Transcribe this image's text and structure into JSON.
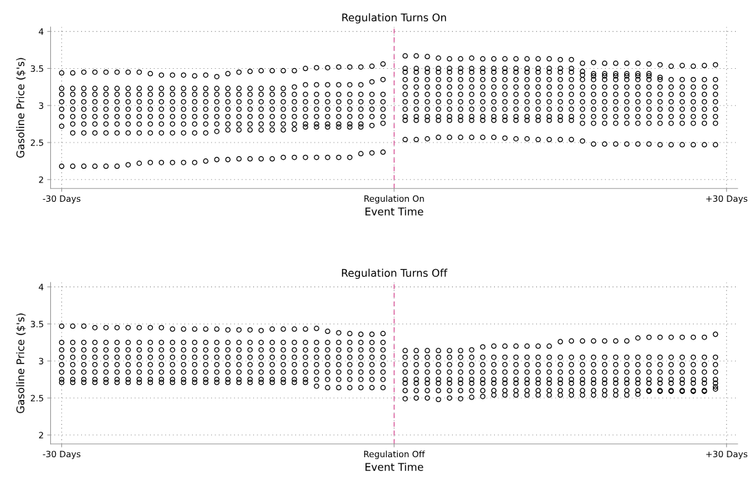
{
  "chart_data": [
    {
      "type": "scatter",
      "title": "Regulation Turns On",
      "xlabel": "Event Time",
      "ylabel": "Gasoline Price ($'s)",
      "marker": "circle",
      "grid": true,
      "xlim": [
        -31,
        31
      ],
      "ylim": [
        1.88,
        4.06
      ],
      "xticks": [
        {
          "value": -30,
          "label": "-30 Days"
        },
        {
          "value": 0,
          "label": "Regulation On"
        },
        {
          "value": 30,
          "label": "+30 Days"
        }
      ],
      "yticks": [
        2,
        2.5,
        3,
        3.5,
        4
      ],
      "ref_lines": [
        {
          "axis": "x",
          "value": 0,
          "color": "#d9589a",
          "line_style": "dashed"
        }
      ],
      "x": [
        -30,
        -29,
        -28,
        -27,
        -26,
        -25,
        -24,
        -23,
        -22,
        -21,
        -20,
        -19,
        -18,
        -17,
        -16,
        -15,
        -14,
        -13,
        -12,
        -11,
        -10,
        -9,
        -8,
        -7,
        -6,
        -5,
        -4,
        -3,
        -2,
        -1,
        1,
        2,
        3,
        4,
        5,
        6,
        7,
        8,
        9,
        10,
        11,
        12,
        13,
        14,
        15,
        16,
        17,
        18,
        19,
        20,
        21,
        22,
        23,
        24,
        25,
        26,
        27,
        28,
        29
      ],
      "series": [
        {
          "color": "#000000",
          "values": [
            3.44,
            3.44,
            3.45,
            3.45,
            3.45,
            3.45,
            3.45,
            3.45,
            3.43,
            3.41,
            3.41,
            3.41,
            3.4,
            3.41,
            3.39,
            3.43,
            3.45,
            3.46,
            3.47,
            3.47,
            3.47,
            3.47,
            3.5,
            3.51,
            3.51,
            3.52,
            3.52,
            3.52,
            3.53,
            3.56,
            3.67,
            3.67,
            3.66,
            3.64,
            3.63,
            3.63,
            3.64,
            3.63,
            3.63,
            3.63,
            3.63,
            3.63,
            3.63,
            3.63,
            3.62,
            3.62,
            3.57,
            3.58,
            3.57,
            3.57,
            3.57,
            3.57,
            3.56,
            3.55,
            3.53,
            3.54,
            3.53,
            3.54,
            3.55
          ]
        },
        {
          "color": "#000000",
          "values": [
            2.18,
            2.18,
            2.18,
            2.18,
            2.18,
            2.18,
            2.2,
            2.22,
            2.23,
            2.23,
            2.23,
            2.23,
            2.23,
            2.25,
            2.27,
            2.27,
            2.28,
            2.28,
            2.28,
            2.28,
            2.3,
            2.3,
            2.3,
            2.3,
            2.3,
            2.3,
            2.3,
            2.35,
            2.36,
            2.37,
            2.54,
            2.54,
            2.55,
            2.57,
            2.57,
            2.57,
            2.57,
            2.57,
            2.57,
            2.56,
            2.55,
            2.55,
            2.54,
            2.54,
            2.54,
            2.54,
            2.52,
            2.48,
            2.48,
            2.48,
            2.48,
            2.48,
            2.48,
            2.47,
            2.47,
            2.47,
            2.47,
            2.47,
            2.47
          ]
        },
        {
          "color": "#000000",
          "values": [
            2.72,
            2.63,
            2.63,
            2.63,
            2.63,
            2.63,
            2.63,
            2.63,
            2.63,
            2.63,
            2.63,
            2.63,
            2.63,
            2.63,
            2.65,
            2.67,
            2.67,
            2.67,
            2.67,
            2.67,
            2.67,
            2.68,
            2.71,
            2.71,
            2.71,
            2.71,
            2.71,
            2.71,
            2.73,
            2.76,
            2.8,
            2.8,
            2.8,
            2.8,
            2.8,
            2.8,
            2.8,
            2.8,
            2.8,
            2.8,
            2.8,
            2.8,
            2.8,
            2.8,
            2.8,
            2.8,
            2.76,
            2.76,
            2.76,
            2.76,
            2.76,
            2.76,
            2.76,
            2.76,
            2.76,
            2.76,
            2.76,
            2.76,
            2.76
          ]
        },
        {
          "color": "#000000",
          "values": [
            3.23,
            3.23,
            3.23,
            3.23,
            3.23,
            3.23,
            3.23,
            3.23,
            3.23,
            3.23,
            3.23,
            3.23,
            3.23,
            3.23,
            3.23,
            3.23,
            3.23,
            3.23,
            3.23,
            3.23,
            3.23,
            3.25,
            3.28,
            3.28,
            3.28,
            3.28,
            3.28,
            3.28,
            3.32,
            3.35,
            3.35,
            3.35,
            3.35,
            3.35,
            3.35,
            3.35,
            3.35,
            3.35,
            3.35,
            3.35,
            3.35,
            3.35,
            3.35,
            3.35,
            3.35,
            3.35,
            3.35,
            3.35,
            3.35,
            3.35,
            3.35,
            3.35,
            3.35,
            3.35,
            3.35,
            3.35,
            3.35,
            3.35,
            3.35
          ]
        },
        {
          "color": "#000000",
          "values": [
            2.85,
            2.85,
            2.85,
            2.85,
            2.85,
            2.85,
            2.85,
            2.85,
            2.85,
            2.85,
            2.85,
            2.85,
            2.85,
            2.85,
            2.85,
            2.85,
            2.85,
            2.85,
            2.85,
            2.85,
            2.85,
            2.85,
            2.85,
            2.85,
            2.85,
            2.85,
            2.85,
            2.85,
            2.85,
            2.85,
            2.85,
            2.85,
            2.85,
            2.85,
            2.85,
            2.85,
            2.85,
            2.85,
            2.85,
            2.85,
            2.85,
            2.85,
            2.85,
            2.85,
            2.85,
            2.85,
            2.85,
            2.85,
            2.85,
            2.85,
            2.85,
            2.85,
            2.85,
            2.85,
            2.85,
            2.85,
            2.85,
            2.85,
            2.85
          ]
        },
        {
          "color": "#000000",
          "values": [
            2.95,
            2.95,
            2.95,
            2.95,
            2.95,
            2.95,
            2.95,
            2.95,
            2.95,
            2.95,
            2.95,
            2.95,
            2.95,
            2.95,
            2.95,
            2.95,
            2.95,
            2.95,
            2.95,
            2.95,
            2.95,
            2.95,
            2.95,
            2.95,
            2.95,
            2.95,
            2.95,
            2.95,
            2.95,
            2.95,
            2.95,
            2.95,
            2.95,
            2.95,
            2.95,
            2.95,
            2.95,
            2.95,
            2.95,
            2.95,
            2.95,
            2.95,
            2.95,
            2.95,
            2.95,
            2.95,
            2.95,
            2.95,
            2.95,
            2.95,
            2.95,
            2.95,
            2.95,
            2.95,
            2.95,
            2.95,
            2.95,
            2.95,
            2.95
          ]
        },
        {
          "color": "#000000",
          "values": [
            3.05,
            3.05,
            3.05,
            3.05,
            3.05,
            3.05,
            3.05,
            3.05,
            3.05,
            3.05,
            3.05,
            3.05,
            3.05,
            3.05,
            3.05,
            3.05,
            3.05,
            3.05,
            3.05,
            3.05,
            3.05,
            3.05,
            3.05,
            3.05,
            3.05,
            3.05,
            3.05,
            3.05,
            3.05,
            3.05,
            3.05,
            3.05,
            3.05,
            3.05,
            3.05,
            3.05,
            3.05,
            3.05,
            3.05,
            3.05,
            3.05,
            3.05,
            3.05,
            3.05,
            3.05,
            3.05,
            3.05,
            3.05,
            3.05,
            3.05,
            3.05,
            3.05,
            3.05,
            3.05,
            3.05,
            3.05,
            3.05,
            3.05,
            3.05
          ]
        },
        {
          "color": "#000000",
          "values": [
            3.15,
            3.15,
            3.15,
            3.15,
            3.15,
            3.15,
            3.15,
            3.15,
            3.15,
            3.15,
            3.15,
            3.15,
            3.15,
            3.15,
            3.15,
            3.15,
            3.15,
            3.15,
            3.15,
            3.15,
            3.15,
            3.15,
            3.15,
            3.15,
            3.15,
            3.15,
            3.15,
            3.15,
            3.15,
            3.15,
            3.15,
            3.15,
            3.15,
            3.15,
            3.15,
            3.15,
            3.15,
            3.15,
            3.15,
            3.15,
            3.15,
            3.15,
            3.15,
            3.15,
            3.15,
            3.15,
            3.15,
            3.15,
            3.15,
            3.15,
            3.15,
            3.15,
            3.15,
            3.15,
            3.15,
            3.15,
            3.15,
            3.15,
            3.15
          ]
        },
        {
          "color": "#000000",
          "x": [
            -29,
            -28,
            -27,
            -26,
            -25,
            -24,
            -23,
            -22,
            -21,
            -20,
            -19,
            -18,
            -17,
            -16,
            -15,
            -14,
            -13,
            -12,
            -11,
            -10,
            -9,
            -8,
            -7,
            -6,
            -5,
            -4,
            -3
          ],
          "values": [
            2.75,
            2.75,
            2.75,
            2.75,
            2.75,
            2.75,
            2.75,
            2.75,
            2.75,
            2.75,
            2.75,
            2.75,
            2.75,
            2.75,
            2.75,
            2.75,
            2.75,
            2.75,
            2.75,
            2.75,
            2.75,
            2.75,
            2.75,
            2.75,
            2.75,
            2.75,
            2.75
          ]
        },
        {
          "color": "#000000",
          "x": [
            1,
            2,
            3,
            4,
            5,
            6,
            7,
            8,
            9,
            10,
            11,
            12,
            13,
            14,
            15,
            16,
            17,
            18,
            19,
            20,
            21,
            22,
            23,
            24,
            25,
            26,
            27,
            28,
            29
          ],
          "values": [
            3.25,
            3.25,
            3.25,
            3.25,
            3.25,
            3.25,
            3.25,
            3.25,
            3.25,
            3.25,
            3.25,
            3.25,
            3.25,
            3.25,
            3.25,
            3.25,
            3.25,
            3.25,
            3.25,
            3.25,
            3.25,
            3.25,
            3.25,
            3.25,
            3.25,
            3.25,
            3.25,
            3.25,
            3.25
          ]
        },
        {
          "color": "#000000",
          "x": [
            1,
            2,
            3,
            4,
            5,
            6,
            7,
            8,
            9,
            10,
            11,
            12,
            13,
            14,
            15,
            16,
            17,
            18,
            19,
            20,
            21,
            22,
            23,
            24
          ],
          "values": [
            3.5,
            3.5,
            3.5,
            3.5,
            3.5,
            3.5,
            3.5,
            3.5,
            3.5,
            3.5,
            3.5,
            3.5,
            3.5,
            3.5,
            3.5,
            3.5,
            3.46,
            3.43,
            3.43,
            3.43,
            3.43,
            3.43,
            3.43,
            3.38
          ]
        },
        {
          "color": "#000000",
          "x": [
            1,
            2,
            3,
            4,
            5,
            6,
            7,
            8,
            9,
            10,
            11,
            12,
            13,
            14,
            15,
            16,
            17,
            18,
            19,
            20,
            21,
            22,
            23
          ],
          "values": [
            3.45,
            3.45,
            3.45,
            3.45,
            3.45,
            3.45,
            3.45,
            3.45,
            3.45,
            3.45,
            3.45,
            3.45,
            3.45,
            3.45,
            3.45,
            3.45,
            3.41,
            3.4,
            3.4,
            3.4,
            3.4,
            3.4,
            3.4
          ]
        }
      ]
    },
    {
      "type": "scatter",
      "title": "Regulation Turns Off",
      "xlabel": "Event Time",
      "ylabel": "Gasoline Price ($'s)",
      "marker": "circle",
      "grid": true,
      "xlim": [
        -31,
        31
      ],
      "ylim": [
        1.88,
        4.06
      ],
      "xticks": [
        {
          "value": -30,
          "label": "-30 Days"
        },
        {
          "value": 0,
          "label": "Regulation Off"
        },
        {
          "value": 30,
          "label": "+30 Days"
        }
      ],
      "yticks": [
        2,
        2.5,
        3,
        3.5,
        4
      ],
      "ref_lines": [
        {
          "axis": "x",
          "value": 0,
          "color": "#d9589a",
          "line_style": "dashed"
        }
      ],
      "x": [
        -30,
        -29,
        -28,
        -27,
        -26,
        -25,
        -24,
        -23,
        -22,
        -21,
        -20,
        -19,
        -18,
        -17,
        -16,
        -15,
        -14,
        -13,
        -12,
        -11,
        -10,
        -9,
        -8,
        -7,
        -6,
        -5,
        -4,
        -3,
        -2,
        -1,
        1,
        2,
        3,
        4,
        5,
        6,
        7,
        8,
        9,
        10,
        11,
        12,
        13,
        14,
        15,
        16,
        17,
        18,
        19,
        20,
        21,
        22,
        23,
        24,
        25,
        26,
        27,
        28,
        29
      ],
      "series": [
        {
          "color": "#000000",
          "values": [
            3.47,
            3.47,
            3.47,
            3.45,
            3.45,
            3.45,
            3.45,
            3.45,
            3.45,
            3.45,
            3.43,
            3.43,
            3.43,
            3.43,
            3.43,
            3.42,
            3.42,
            3.42,
            3.41,
            3.43,
            3.43,
            3.43,
            3.43,
            3.44,
            3.4,
            3.38,
            3.37,
            3.36,
            3.36,
            3.37,
            3.14,
            3.14,
            3.14,
            3.14,
            3.14,
            3.14,
            3.15,
            3.19,
            3.2,
            3.2,
            3.2,
            3.2,
            3.2,
            3.2,
            3.26,
            3.27,
            3.27,
            3.27,
            3.27,
            3.27,
            3.27,
            3.31,
            3.32,
            3.32,
            3.32,
            3.32,
            3.32,
            3.32,
            3.36
          ]
        },
        {
          "color": "#000000",
          "values": [
            2.71,
            2.71,
            2.71,
            2.71,
            2.71,
            2.71,
            2.71,
            2.71,
            2.71,
            2.71,
            2.71,
            2.71,
            2.71,
            2.71,
            2.71,
            2.71,
            2.71,
            2.71,
            2.71,
            2.71,
            2.71,
            2.71,
            2.71,
            2.66,
            2.64,
            2.64,
            2.64,
            2.64,
            2.64,
            2.64,
            2.49,
            2.5,
            2.5,
            2.48,
            2.5,
            2.49,
            2.51,
            2.52,
            2.54,
            2.54,
            2.54,
            2.54,
            2.54,
            2.54,
            2.54,
            2.54,
            2.54,
            2.54,
            2.54,
            2.54,
            2.54,
            2.55,
            2.59,
            2.59,
            2.59,
            2.59,
            2.59,
            2.59,
            2.62
          ]
        },
        {
          "color": "#000000",
          "values": [
            2.75,
            2.75,
            2.75,
            2.75,
            2.75,
            2.75,
            2.75,
            2.75,
            2.75,
            2.75,
            2.75,
            2.75,
            2.75,
            2.75,
            2.75,
            2.75,
            2.75,
            2.75,
            2.75,
            2.75,
            2.75,
            2.75,
            2.75,
            2.75,
            2.75,
            2.75,
            2.75,
            2.75,
            2.75,
            2.75,
            2.75,
            2.75,
            2.75,
            2.75,
            2.75,
            2.75,
            2.75,
            2.75,
            2.75,
            2.75,
            2.75,
            2.75,
            2.75,
            2.75,
            2.75,
            2.75,
            2.75,
            2.75,
            2.75,
            2.75,
            2.75,
            2.75,
            2.75,
            2.75,
            2.75,
            2.75,
            2.75,
            2.75,
            2.75
          ]
        },
        {
          "color": "#000000",
          "values": [
            2.85,
            2.85,
            2.85,
            2.85,
            2.85,
            2.85,
            2.85,
            2.85,
            2.85,
            2.85,
            2.85,
            2.85,
            2.85,
            2.85,
            2.85,
            2.85,
            2.85,
            2.85,
            2.85,
            2.85,
            2.85,
            2.85,
            2.85,
            2.85,
            2.85,
            2.85,
            2.85,
            2.85,
            2.85,
            2.85,
            2.85,
            2.85,
            2.85,
            2.85,
            2.85,
            2.85,
            2.85,
            2.85,
            2.85,
            2.85,
            2.85,
            2.85,
            2.85,
            2.85,
            2.85,
            2.85,
            2.85,
            2.85,
            2.85,
            2.85,
            2.85,
            2.85,
            2.85,
            2.85,
            2.85,
            2.85,
            2.85,
            2.85,
            2.85
          ]
        },
        {
          "color": "#000000",
          "values": [
            2.95,
            2.95,
            2.95,
            2.95,
            2.95,
            2.95,
            2.95,
            2.95,
            2.95,
            2.95,
            2.95,
            2.95,
            2.95,
            2.95,
            2.95,
            2.95,
            2.95,
            2.95,
            2.95,
            2.95,
            2.95,
            2.95,
            2.95,
            2.95,
            2.95,
            2.95,
            2.95,
            2.95,
            2.95,
            2.95,
            2.95,
            2.95,
            2.95,
            2.95,
            2.95,
            2.95,
            2.95,
            2.95,
            2.95,
            2.95,
            2.95,
            2.95,
            2.95,
            2.95,
            2.95,
            2.95,
            2.95,
            2.95,
            2.95,
            2.95,
            2.95,
            2.95,
            2.95,
            2.95,
            2.95,
            2.95,
            2.95,
            2.95,
            2.95
          ]
        },
        {
          "color": "#000000",
          "values": [
            3.05,
            3.05,
            3.05,
            3.05,
            3.05,
            3.05,
            3.05,
            3.05,
            3.05,
            3.05,
            3.05,
            3.05,
            3.05,
            3.05,
            3.05,
            3.05,
            3.05,
            3.05,
            3.05,
            3.05,
            3.05,
            3.05,
            3.05,
            3.05,
            3.05,
            3.05,
            3.05,
            3.05,
            3.05,
            3.05,
            3.05,
            3.05,
            3.05,
            3.05,
            3.05,
            3.05,
            3.05,
            3.05,
            3.05,
            3.05,
            3.05,
            3.05,
            3.05,
            3.05,
            3.05,
            3.05,
            3.05,
            3.05,
            3.05,
            3.05,
            3.05,
            3.05,
            3.05,
            3.05,
            3.05,
            3.05,
            3.05,
            3.05,
            3.05
          ]
        },
        {
          "color": "#000000",
          "x": [
            -30,
            -29,
            -28,
            -27,
            -26,
            -25,
            -24,
            -23,
            -22,
            -21,
            -20,
            -19,
            -18,
            -17,
            -16,
            -15,
            -14,
            -13,
            -12,
            -11,
            -10,
            -9,
            -8,
            -7,
            -6,
            -5,
            -4,
            -3,
            -2,
            -1
          ],
          "values": [
            3.15,
            3.15,
            3.15,
            3.15,
            3.15,
            3.15,
            3.15,
            3.15,
            3.15,
            3.15,
            3.15,
            3.15,
            3.15,
            3.15,
            3.15,
            3.15,
            3.15,
            3.15,
            3.15,
            3.15,
            3.15,
            3.15,
            3.15,
            3.15,
            3.15,
            3.15,
            3.15,
            3.15,
            3.15,
            3.15
          ]
        },
        {
          "color": "#000000",
          "x": [
            -30,
            -29,
            -28,
            -27,
            -26,
            -25,
            -24,
            -23,
            -22,
            -21,
            -20,
            -19,
            -18,
            -17,
            -16,
            -15,
            -14,
            -13,
            -12,
            -11,
            -10,
            -9,
            -8,
            -7,
            -6,
            -5,
            -4,
            -3,
            -2,
            -1
          ],
          "values": [
            3.25,
            3.25,
            3.25,
            3.25,
            3.25,
            3.25,
            3.25,
            3.25,
            3.25,
            3.25,
            3.25,
            3.25,
            3.25,
            3.25,
            3.25,
            3.25,
            3.25,
            3.25,
            3.25,
            3.25,
            3.25,
            3.25,
            3.25,
            3.25,
            3.25,
            3.25,
            3.25,
            3.25,
            3.25,
            3.25
          ]
        },
        {
          "color": "#000000",
          "x": [
            1,
            2,
            3,
            4,
            5,
            6,
            7,
            8,
            9,
            10,
            11,
            12,
            13,
            14,
            15,
            16,
            17,
            18,
            19,
            20,
            21,
            22,
            23,
            24,
            25,
            26,
            27,
            28,
            29
          ],
          "values": [
            2.6,
            2.6,
            2.6,
            2.6,
            2.6,
            2.6,
            2.6,
            2.6,
            2.6,
            2.6,
            2.6,
            2.6,
            2.6,
            2.6,
            2.6,
            2.6,
            2.6,
            2.6,
            2.6,
            2.6,
            2.6,
            2.6,
            2.6,
            2.6,
            2.6,
            2.6,
            2.6,
            2.6,
            2.65
          ]
        },
        {
          "color": "#000000",
          "x": [
            1,
            2,
            3,
            4,
            5,
            6,
            7,
            8,
            9,
            10,
            11,
            12,
            13,
            14,
            15,
            16,
            17,
            18,
            19,
            20,
            21,
            22,
            23,
            24,
            25,
            26,
            27,
            28,
            29
          ],
          "values": [
            2.7,
            2.7,
            2.7,
            2.7,
            2.7,
            2.7,
            2.7,
            2.7,
            2.7,
            2.7,
            2.7,
            2.7,
            2.7,
            2.7,
            2.7,
            2.7,
            2.7,
            2.7,
            2.7,
            2.7,
            2.7,
            2.7,
            2.7,
            2.7,
            2.7,
            2.7,
            2.7,
            2.7,
            2.7
          ]
        }
      ]
    }
  ]
}
